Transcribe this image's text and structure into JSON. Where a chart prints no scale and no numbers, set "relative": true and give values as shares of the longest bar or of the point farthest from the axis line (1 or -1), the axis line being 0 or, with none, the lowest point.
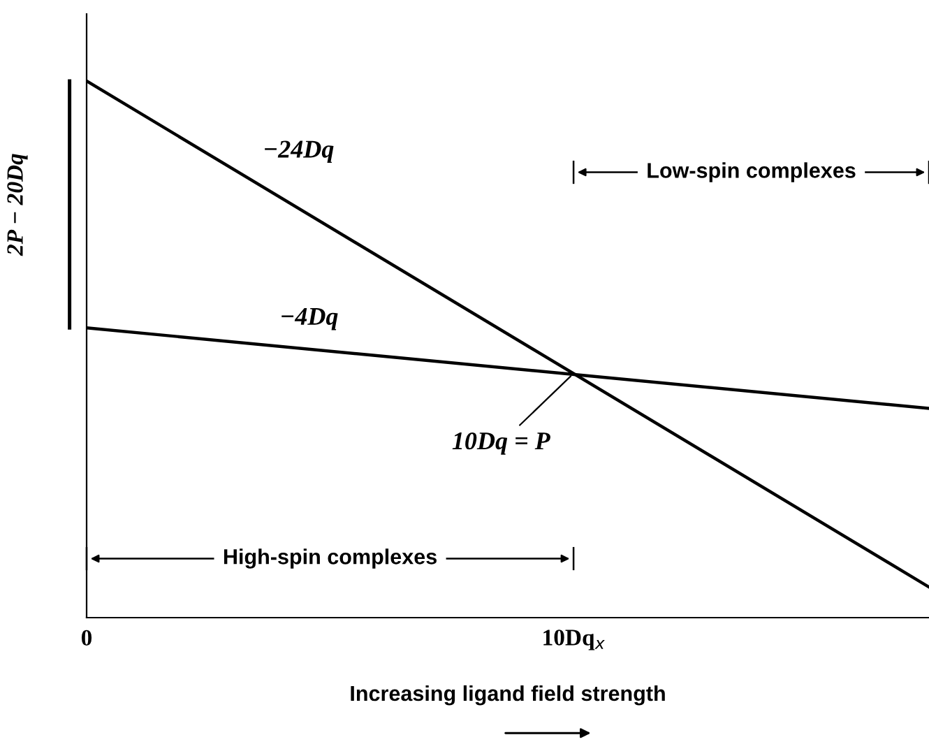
{
  "chart_data": {
    "type": "line",
    "relative": true,
    "xlabel": "Increasing ligand field strength",
    "ylabel": "2P − 20Dq",
    "xlim": [
      0,
      17.3
    ],
    "xticks": [
      0,
      {
        "value": 10,
        "label": "10Dq$_{x}$"
      }
    ],
    "tick_labels": "x",
    "grid": false,
    "legend": false,
    "marker": "none",
    "line_style": "solid",
    "series": [
      {
        "name": "−24Dq",
        "color": "#000000",
        "values": [
          1,
          0.057
        ]
      },
      {
        "name": "−4Dq",
        "color": "#000000",
        "values": [
          0.54,
          0.39
        ]
      }
    ],
    "x": [
      0,
      17.3
    ],
    "annotations": [
      {
        "text": "10Dq = P",
        "x": 10,
        "y": 0.455
      },
      "High-spin complexes",
      "Low-spin complexes"
    ]
  }
}
